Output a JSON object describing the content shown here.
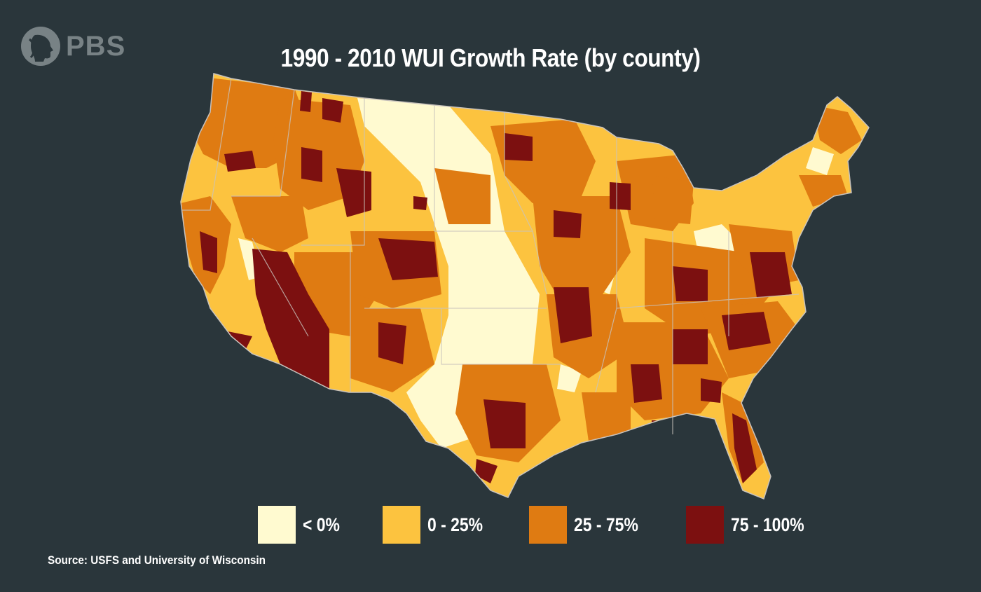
{
  "logo": {
    "text": "PBS",
    "icon": "pbs-head-icon"
  },
  "title": "1990 - 2010 WUI Growth Rate (by county)",
  "legend": [
    {
      "label": "< 0%",
      "color": "#fffad0"
    },
    {
      "label": "0 - 25%",
      "color": "#fcc33f"
    },
    {
      "label": "25 - 75%",
      "color": "#df7b12"
    },
    {
      "label": "75 - 100%",
      "color": "#7c1010"
    }
  ],
  "source": "Source: USFS and University of Wisconsin",
  "colors": {
    "background": "#2a363b",
    "border": "#c9c3bd"
  }
}
